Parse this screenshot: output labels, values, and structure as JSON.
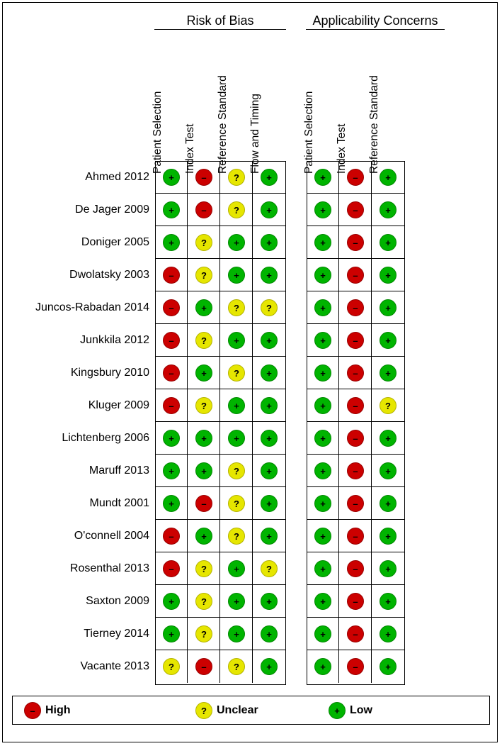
{
  "chart_data": {
    "type": "table",
    "groups": [
      {
        "title": "Risk of Bias",
        "columns": [
          "Patient Selection",
          "Index Test",
          "Reference Standard",
          "Flow and Timing"
        ]
      },
      {
        "title": "Applicability Concerns",
        "columns": [
          "Patient Selection",
          "Index Test",
          "Reference Standard"
        ]
      }
    ],
    "ratings": {
      "high": {
        "label": "High",
        "symbol": "–",
        "color": "#cc0000"
      },
      "unclear": {
        "label": "Unclear",
        "symbol": "?",
        "color": "#e6e600"
      },
      "low": {
        "label": "Low",
        "symbol": "+",
        "color": "#00b400"
      }
    },
    "rows": [
      {
        "study": "Ahmed 2012",
        "rob": [
          "low",
          "high",
          "unclear",
          "low"
        ],
        "app": [
          "low",
          "high",
          "low"
        ]
      },
      {
        "study": "De Jager 2009",
        "rob": [
          "low",
          "high",
          "unclear",
          "low"
        ],
        "app": [
          "low",
          "high",
          "low"
        ]
      },
      {
        "study": "Doniger 2005",
        "rob": [
          "low",
          "unclear",
          "low",
          "low"
        ],
        "app": [
          "low",
          "high",
          "low"
        ]
      },
      {
        "study": "Dwolatsky 2003",
        "rob": [
          "high",
          "unclear",
          "low",
          "low"
        ],
        "app": [
          "low",
          "high",
          "low"
        ]
      },
      {
        "study": "Juncos-Rabadan 2014",
        "rob": [
          "high",
          "low",
          "unclear",
          "unclear"
        ],
        "app": [
          "low",
          "high",
          "low"
        ]
      },
      {
        "study": "Junkkila 2012",
        "rob": [
          "high",
          "unclear",
          "low",
          "low"
        ],
        "app": [
          "low",
          "high",
          "low"
        ]
      },
      {
        "study": "Kingsbury 2010",
        "rob": [
          "high",
          "low",
          "unclear",
          "low"
        ],
        "app": [
          "low",
          "high",
          "low"
        ]
      },
      {
        "study": "Kluger 2009",
        "rob": [
          "high",
          "unclear",
          "low",
          "low"
        ],
        "app": [
          "low",
          "high",
          "unclear"
        ]
      },
      {
        "study": "Lichtenberg 2006",
        "rob": [
          "low",
          "low",
          "low",
          "low"
        ],
        "app": [
          "low",
          "high",
          "low"
        ]
      },
      {
        "study": "Maruff 2013",
        "rob": [
          "low",
          "low",
          "unclear",
          "low"
        ],
        "app": [
          "low",
          "high",
          "low"
        ]
      },
      {
        "study": "Mundt 2001",
        "rob": [
          "low",
          "high",
          "unclear",
          "low"
        ],
        "app": [
          "low",
          "high",
          "low"
        ]
      },
      {
        "study": "O'connell 2004",
        "rob": [
          "high",
          "low",
          "unclear",
          "low"
        ],
        "app": [
          "low",
          "high",
          "low"
        ]
      },
      {
        "study": "Rosenthal 2013",
        "rob": [
          "high",
          "unclear",
          "low",
          "unclear"
        ],
        "app": [
          "low",
          "high",
          "low"
        ]
      },
      {
        "study": "Saxton 2009",
        "rob": [
          "low",
          "unclear",
          "low",
          "low"
        ],
        "app": [
          "low",
          "high",
          "low"
        ]
      },
      {
        "study": "Tierney 2014",
        "rob": [
          "low",
          "unclear",
          "low",
          "low"
        ],
        "app": [
          "low",
          "high",
          "low"
        ]
      },
      {
        "study": "Vacante 2013",
        "rob": [
          "unclear",
          "high",
          "unclear",
          "low"
        ],
        "app": [
          "low",
          "high",
          "low"
        ]
      }
    ],
    "legend": [
      "high",
      "unclear",
      "low"
    ]
  }
}
